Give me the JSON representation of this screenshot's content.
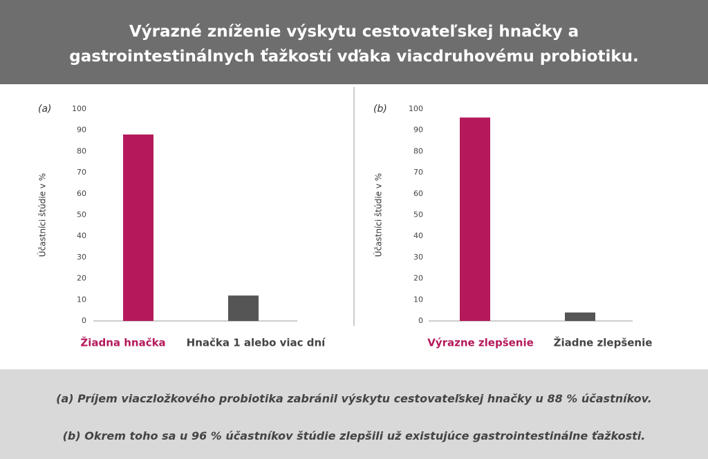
{
  "title": "Výrazné zníženie výskytu cestovateľskej hnačky a gastrointestinálnych ťažkostí vďaka viacdruhovému probiotiku.",
  "chart_data": [
    {
      "type": "bar",
      "panel": "(a)",
      "ylabel": "Účastníci štúdie v %",
      "categories": [
        "Žiadna hnačka",
        "Hnačka 1 alebo viac dní"
      ],
      "values": [
        88,
        12
      ],
      "colors": [
        "#b5195b",
        "#555555"
      ],
      "ylim": [
        0,
        100
      ],
      "yticks": [
        0,
        10,
        20,
        30,
        40,
        50,
        60,
        70,
        80,
        90,
        100
      ]
    },
    {
      "type": "bar",
      "panel": "(b)",
      "ylabel": "Účastníci štúdie v %",
      "categories": [
        "Výrazne zlepšenie",
        "Žiadne zlepšenie"
      ],
      "values": [
        96,
        4
      ],
      "colors": [
        "#b5195b",
        "#555555"
      ],
      "ylim": [
        0,
        100
      ],
      "yticks": [
        0,
        10,
        20,
        30,
        40,
        50,
        60,
        70,
        80,
        90,
        100
      ]
    }
  ],
  "notes": [
    "(a) Príjem viaczložkového probiotika zabránil výskytu cestovateľskej hnačky u 88 % účastníkov.",
    "(b) Okrem toho sa u 96 % účastníkov štúdie zlepšili už existujúce gastrointestinálne ťažkosti."
  ]
}
